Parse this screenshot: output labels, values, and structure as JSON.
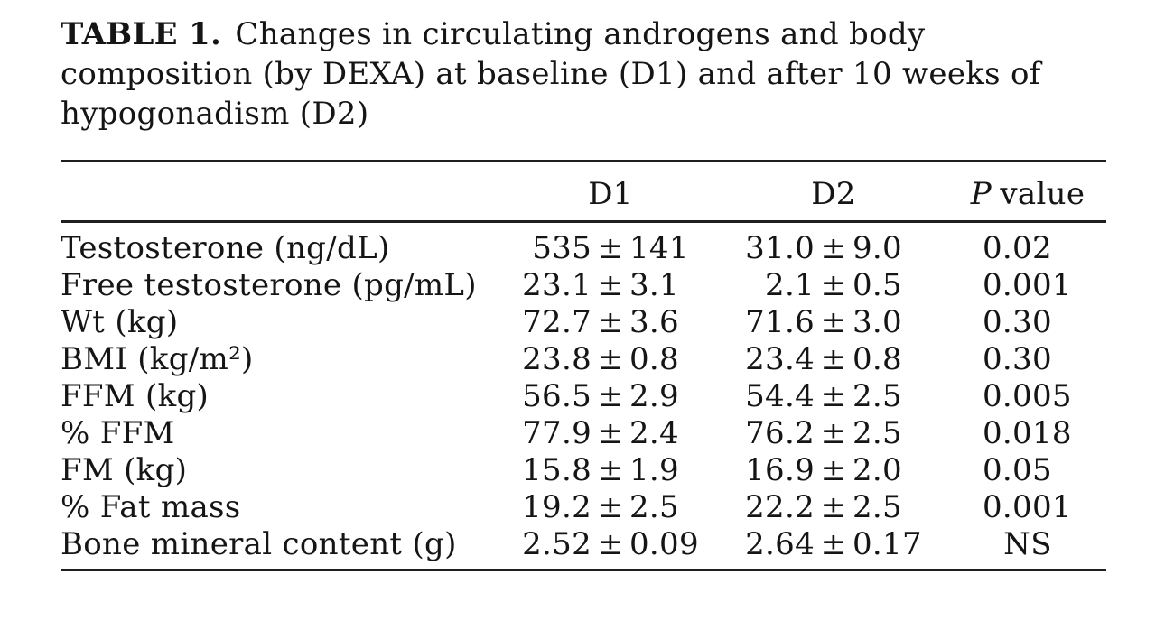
{
  "page": {
    "background_color": "#ffffff",
    "text_color": "#151515",
    "rule_color": "#1f1f1f"
  },
  "title": {
    "prefix": "TABLE 1.",
    "line1": "Changes in circulating androgens and body",
    "line2": "composition (by DEXA) at baseline (D1) and after 10 weeks of",
    "line3": "hypogonadism (D2)"
  },
  "table": {
    "header": {
      "stub": "",
      "d1": "D1",
      "d2": "D2",
      "p_italic": "P",
      "p_rest": "value"
    },
    "plus_minus": "±",
    "rows": [
      {
        "label": "Testosterone (ng/dL)",
        "d1_mean": "535",
        "d1_sd": "141",
        "d2_mean": "31.0",
        "d2_sd": "9.0",
        "p": "0.02"
      },
      {
        "label": "Free testosterone (pg/mL)",
        "d1_mean": "23.1",
        "d1_sd": "3.1",
        "d2_mean": "2.1",
        "d2_sd": "0.5",
        "p": "0.001"
      },
      {
        "label": "Wt (kg)",
        "d1_mean": "72.7",
        "d1_sd": "3.6",
        "d2_mean": "71.6",
        "d2_sd": "3.0",
        "p": "0.30"
      },
      {
        "label": "BMI (kg/m²)",
        "d1_mean": "23.8",
        "d1_sd": "0.8",
        "d2_mean": "23.4",
        "d2_sd": "0.8",
        "p": "0.30"
      },
      {
        "label": "FFM (kg)",
        "d1_mean": "56.5",
        "d1_sd": "2.9",
        "d2_mean": "54.4",
        "d2_sd": "2.5",
        "p": "0.005"
      },
      {
        "label": "% FFM",
        "d1_mean": "77.9",
        "d1_sd": "2.4",
        "d2_mean": "76.2",
        "d2_sd": "2.5",
        "p": "0.018"
      },
      {
        "label": "FM (kg)",
        "d1_mean": "15.8",
        "d1_sd": "1.9",
        "d2_mean": "16.9",
        "d2_sd": "2.0",
        "p": "0.05"
      },
      {
        "label": "% Fat mass",
        "d1_mean": "19.2",
        "d1_sd": "2.5",
        "d2_mean": "22.2",
        "d2_sd": "2.5",
        "p": "0.001"
      },
      {
        "label": "Bone mineral content (g)",
        "d1_mean": "2.52",
        "d1_sd": "0.09",
        "d2_mean": "2.64",
        "d2_sd": "0.17",
        "p": "NS"
      }
    ]
  },
  "chart_data": {
    "type": "table",
    "title": "TABLE 1. Changes in circulating androgens and body composition (by DEXA) at baseline (D1) and after 10 weeks of hypogonadism (D2)",
    "columns": [
      "",
      "D1",
      "D2",
      "P value"
    ],
    "categories": [
      "Testosterone (ng/dL)",
      "Free testosterone (pg/mL)",
      "Wt (kg)",
      "BMI (kg/m²)",
      "FFM (kg)",
      "% FFM",
      "FM (kg)",
      "% Fat mass",
      "Bone mineral content (g)"
    ],
    "series": [
      {
        "name": "D1 mean",
        "values": [
          535,
          23.1,
          72.7,
          23.8,
          56.5,
          77.9,
          15.8,
          19.2,
          2.52
        ]
      },
      {
        "name": "D1 sd",
        "values": [
          141,
          3.1,
          3.6,
          0.8,
          2.9,
          2.4,
          1.9,
          2.5,
          0.09
        ]
      },
      {
        "name": "D2 mean",
        "values": [
          31.0,
          2.1,
          71.6,
          23.4,
          54.4,
          76.2,
          16.9,
          22.2,
          2.64
        ]
      },
      {
        "name": "D2 sd",
        "values": [
          9.0,
          0.5,
          3.0,
          0.8,
          2.5,
          2.5,
          2.0,
          2.5,
          0.17
        ]
      },
      {
        "name": "P value",
        "values": [
          "0.02",
          "0.001",
          "0.30",
          "0.30",
          "0.005",
          "0.018",
          "0.05",
          "0.001",
          "NS"
        ]
      }
    ]
  }
}
